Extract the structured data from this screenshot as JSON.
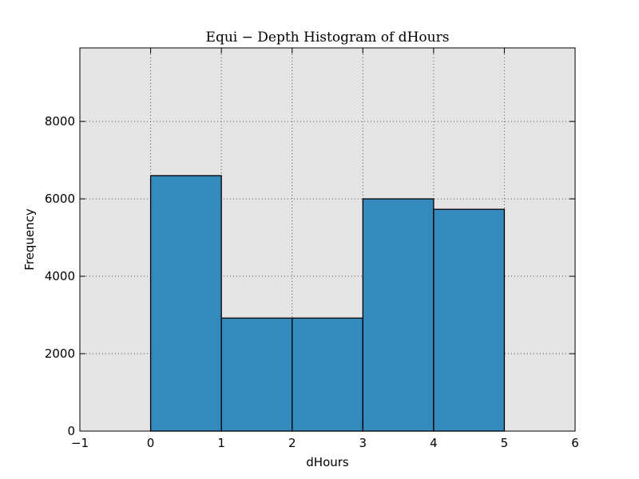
{
  "chart_data": {
    "type": "bar",
    "title": "Equi − Depth Histogram of dHours",
    "xlabel": "dHours",
    "ylabel": "Frequency",
    "xlim": [
      -1,
      6
    ],
    "ylim": [
      0,
      9900
    ],
    "xticks": [
      -1,
      0,
      1,
      2,
      3,
      4,
      5,
      6
    ],
    "yticks": [
      0,
      2000,
      4000,
      6000,
      8000
    ],
    "grid": true,
    "colors": {
      "bar_fill": "#348abd",
      "bar_edge": "#000000",
      "plot_background": "#e5e5e5",
      "grid": "#555555"
    },
    "bins": [
      {
        "x0": 0,
        "x1": 1,
        "value": 6600
      },
      {
        "x0": 1,
        "x1": 2,
        "value": 2920
      },
      {
        "x0": 2,
        "x1": 3,
        "value": 2920
      },
      {
        "x0": 3,
        "x1": 4,
        "value": 6000
      },
      {
        "x0": 4,
        "x1": 5,
        "value": 5730
      }
    ]
  }
}
